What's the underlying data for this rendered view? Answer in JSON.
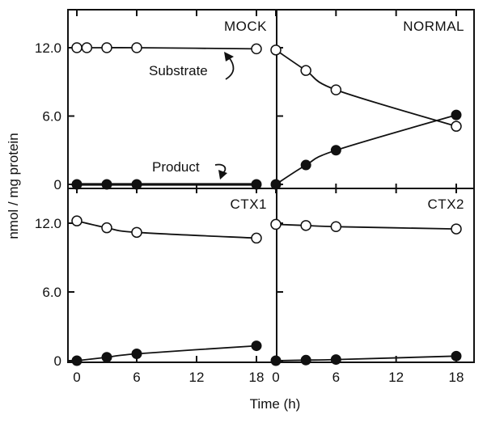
{
  "chart_data": {
    "type": "scatter",
    "xlabel": "Time (h)",
    "ylabel": "nmol / mg protein",
    "xlim": [
      -1,
      20
    ],
    "ylim": [
      0,
      14.5
    ],
    "x_ticks": [
      0,
      6,
      12,
      18
    ],
    "y_ticks": [
      0,
      6.0,
      12.0
    ],
    "y_tick_labels": [
      "0",
      "6.0",
      "12.0"
    ],
    "grid": false,
    "panels": [
      {
        "title": "MOCK",
        "series": [
          {
            "name": "Substrate",
            "marker": "open-circle",
            "x": [
              0,
              1,
              3,
              6,
              18
            ],
            "y": [
              12.0,
              12.0,
              12.0,
              12.0,
              11.9
            ]
          },
          {
            "name": "Product",
            "marker": "filled-circle",
            "x": [
              0,
              3,
              6,
              18
            ],
            "y": [
              0.0,
              0.0,
              0.0,
              0.0
            ]
          }
        ],
        "annotations": [
          "Substrate",
          "Product"
        ]
      },
      {
        "title": "NORMAL",
        "series": [
          {
            "name": "Substrate",
            "marker": "open-circle",
            "x": [
              0,
              3,
              6,
              18
            ],
            "y": [
              11.8,
              10.0,
              8.3,
              5.1
            ]
          },
          {
            "name": "Product",
            "marker": "filled-circle",
            "x": [
              0,
              3,
              6,
              18
            ],
            "y": [
              0.0,
              1.7,
              3.0,
              6.1
            ]
          }
        ]
      },
      {
        "title": "CTX1",
        "series": [
          {
            "name": "Substrate",
            "marker": "open-circle",
            "x": [
              0,
              3,
              6,
              18
            ],
            "y": [
              12.2,
              11.6,
              11.2,
              10.7
            ]
          },
          {
            "name": "Product",
            "marker": "filled-circle",
            "x": [
              0,
              3,
              6,
              18
            ],
            "y": [
              0.0,
              0.3,
              0.6,
              1.3
            ]
          }
        ]
      },
      {
        "title": "CTX2",
        "series": [
          {
            "name": "Substrate",
            "marker": "open-circle",
            "x": [
              0,
              3,
              6,
              18
            ],
            "y": [
              11.9,
              11.8,
              11.7,
              11.5
            ]
          },
          {
            "name": "Product",
            "marker": "filled-circle",
            "x": [
              0,
              3,
              6,
              18
            ],
            "y": [
              0.0,
              0.05,
              0.1,
              0.4
            ]
          }
        ]
      }
    ]
  }
}
